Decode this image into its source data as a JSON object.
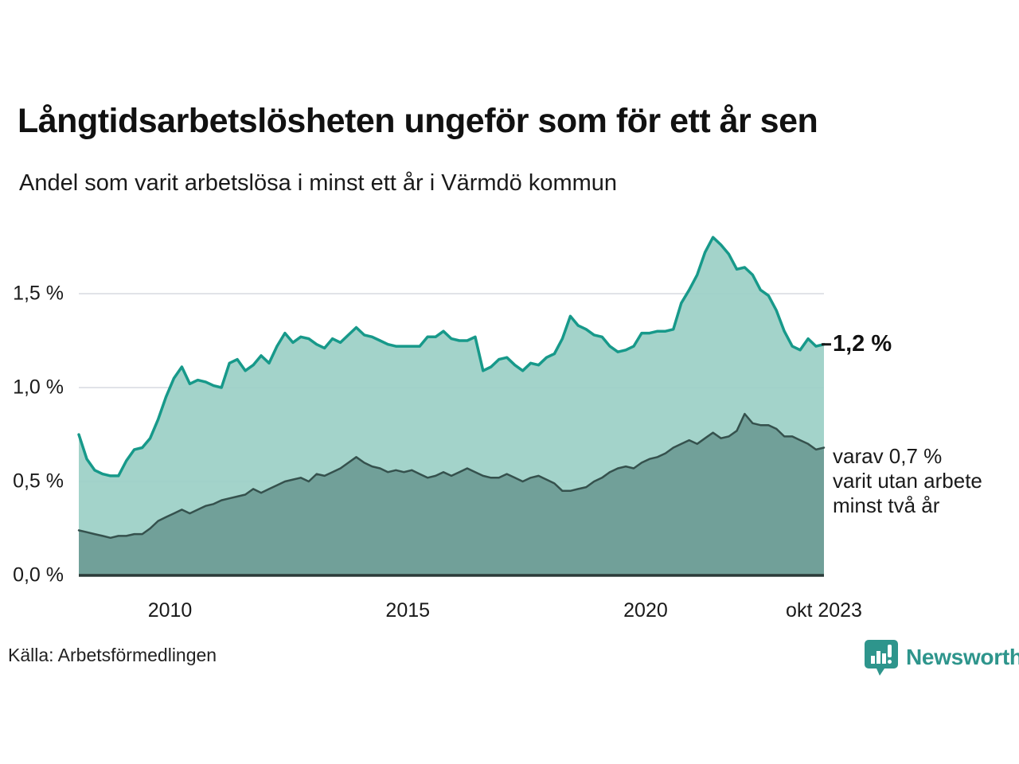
{
  "header": {
    "title": "Långtidsarbetslösheten ungeför som för ett år sen",
    "subtitle": "Andel som varit arbetslösa i minst ett år i Värmdö kommun"
  },
  "source": {
    "label": "Källa: Arbetsförmedlingen"
  },
  "branding": {
    "name": "Newsworthy",
    "color": "#2e958c",
    "icon": "speech-bubble-bar-chart-exclamation"
  },
  "chart_data": {
    "type": "area",
    "title": "Långtidsarbetslösheten ungeför som för ett år sen",
    "subtitle": "Andel som varit arbetslösa i minst ett år i Värmdö kommun",
    "grid": true,
    "x_range": [
      2008.083,
      2023.75
    ],
    "ylim": [
      0,
      1.9
    ],
    "x_ticks": [
      {
        "label": "2010",
        "x": 2010
      },
      {
        "label": "2015",
        "x": 2015
      },
      {
        "label": "2020",
        "x": 2020
      },
      {
        "label": "okt 2023",
        "x": 2023.75
      }
    ],
    "y_ticks": [
      {
        "label": "0,0 %",
        "value": 0.0
      },
      {
        "label": "0,5 %",
        "value": 0.5
      },
      {
        "label": "1,0 %",
        "value": 1.0
      },
      {
        "label": "1,5 %",
        "value": 1.5
      }
    ],
    "series": [
      {
        "name": "Andel arbetslösa minst ett år",
        "line_color": "#17998a",
        "fill_color": "#9bcfc6",
        "end_value_label": "1,2 %",
        "values": [
          0.75,
          0.62,
          0.56,
          0.54,
          0.53,
          0.53,
          0.61,
          0.67,
          0.68,
          0.73,
          0.83,
          0.95,
          1.05,
          1.11,
          1.02,
          1.04,
          1.03,
          1.01,
          1.0,
          1.13,
          1.15,
          1.09,
          1.12,
          1.17,
          1.13,
          1.22,
          1.29,
          1.24,
          1.27,
          1.26,
          1.23,
          1.21,
          1.26,
          1.24,
          1.28,
          1.32,
          1.28,
          1.27,
          1.25,
          1.23,
          1.22,
          1.22,
          1.22,
          1.22,
          1.27,
          1.27,
          1.3,
          1.26,
          1.25,
          1.25,
          1.27,
          1.09,
          1.11,
          1.15,
          1.16,
          1.12,
          1.09,
          1.13,
          1.12,
          1.16,
          1.18,
          1.26,
          1.38,
          1.33,
          1.31,
          1.28,
          1.27,
          1.22,
          1.19,
          1.2,
          1.22,
          1.29,
          1.29,
          1.3,
          1.3,
          1.31,
          1.45,
          1.52,
          1.6,
          1.72,
          1.8,
          1.76,
          1.71,
          1.63,
          1.64,
          1.6,
          1.52,
          1.49,
          1.41,
          1.3,
          1.22,
          1.2,
          1.26,
          1.22,
          1.23
        ]
      },
      {
        "name": "Varav utan arbete minst två år",
        "line_color": "#35514d",
        "fill_color": "#6d9b95",
        "end_value_label": "0,7 %",
        "values": [
          0.24,
          0.23,
          0.22,
          0.21,
          0.2,
          0.21,
          0.21,
          0.22,
          0.22,
          0.25,
          0.29,
          0.31,
          0.33,
          0.35,
          0.33,
          0.35,
          0.37,
          0.38,
          0.4,
          0.41,
          0.42,
          0.43,
          0.46,
          0.44,
          0.46,
          0.48,
          0.5,
          0.51,
          0.52,
          0.5,
          0.54,
          0.53,
          0.55,
          0.57,
          0.6,
          0.63,
          0.6,
          0.58,
          0.57,
          0.55,
          0.56,
          0.55,
          0.56,
          0.54,
          0.52,
          0.53,
          0.55,
          0.53,
          0.55,
          0.57,
          0.55,
          0.53,
          0.52,
          0.52,
          0.54,
          0.52,
          0.5,
          0.52,
          0.53,
          0.51,
          0.49,
          0.45,
          0.45,
          0.46,
          0.47,
          0.5,
          0.52,
          0.55,
          0.57,
          0.58,
          0.57,
          0.6,
          0.62,
          0.63,
          0.65,
          0.68,
          0.7,
          0.72,
          0.7,
          0.73,
          0.76,
          0.73,
          0.74,
          0.77,
          0.86,
          0.81,
          0.8,
          0.8,
          0.78,
          0.74,
          0.74,
          0.72,
          0.7,
          0.67,
          0.68
        ]
      }
    ],
    "annotations": [
      {
        "text": "1,2 %",
        "bold": true
      },
      {
        "lines": [
          "varav 0,7 %",
          "varit utan arbete",
          "minst två år"
        ]
      }
    ],
    "colors": {
      "gridline": "#e1e3e8",
      "axis": "#2c3b39",
      "text": "#1a1a1a"
    }
  }
}
